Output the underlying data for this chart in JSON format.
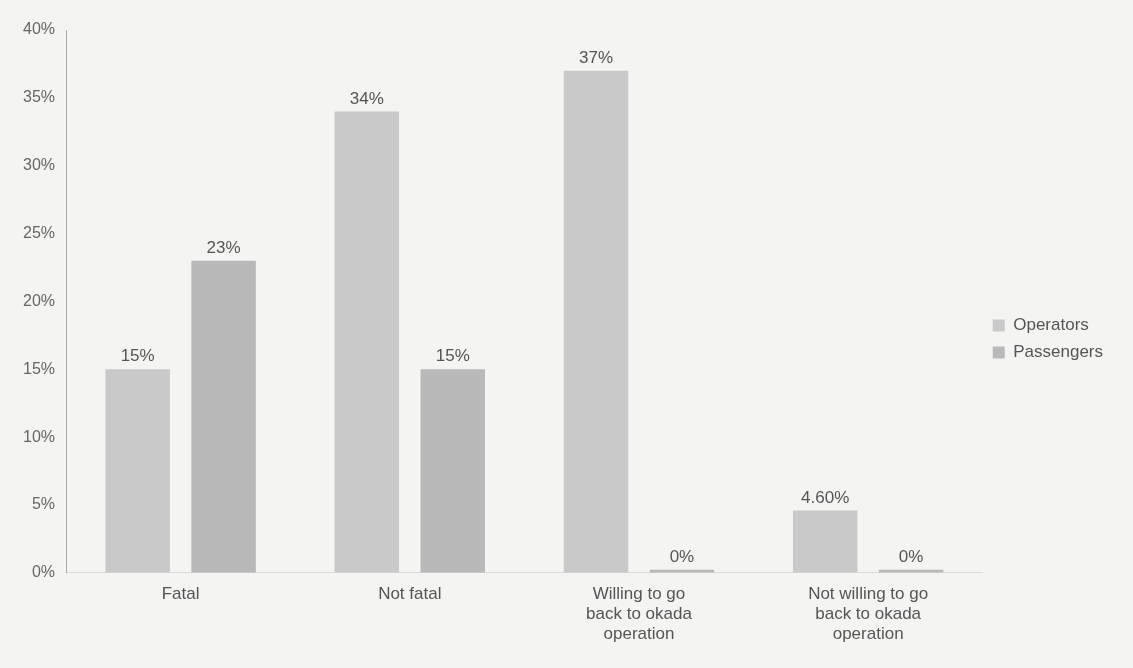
{
  "chart_data": {
    "type": "bar",
    "categories": [
      "Fatal",
      "Not fatal",
      "Willing to go back to okada operation",
      "Not willing to go back to okada operation"
    ],
    "series": [
      {
        "name": "Operators",
        "color": "#c9c9c9",
        "values": [
          15,
          34,
          37,
          4.6
        ],
        "value_labels": [
          "15%",
          "34%",
          "37%",
          "4.60%"
        ]
      },
      {
        "name": "Passengers",
        "color": "#b9b9b9",
        "values": [
          23,
          15,
          0,
          0
        ],
        "value_labels": [
          "23%",
          "15%",
          "0%",
          "0%"
        ]
      }
    ],
    "ylim": [
      0,
      40
    ],
    "yticks": [
      {
        "value": 0,
        "label": "0%"
      },
      {
        "value": 5,
        "label": "5%"
      },
      {
        "value": 10,
        "label": "10%"
      },
      {
        "value": 15,
        "label": "15%"
      },
      {
        "value": 20,
        "label": "20%"
      },
      {
        "value": 25,
        "label": "25%"
      },
      {
        "value": 30,
        "label": "30%"
      },
      {
        "value": 35,
        "label": "35%"
      },
      {
        "value": 40,
        "label": "40%"
      }
    ],
    "grid": false,
    "legend": "right"
  }
}
